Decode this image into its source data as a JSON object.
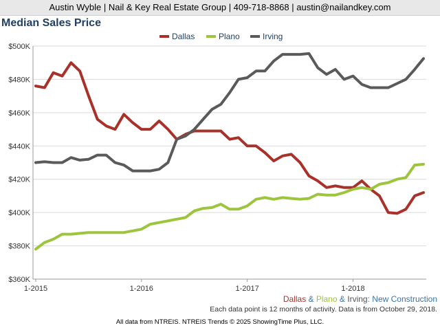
{
  "header": {
    "text": "Austin Wyble | Nail & Key Real Estate Group | 409-718-8868 | austin@nailandkey.com"
  },
  "chart_data": {
    "type": "line",
    "title": "Median Sales Price",
    "x_tick_labels": [
      "1-2015",
      "1-2016",
      "1-2017",
      "1-2018"
    ],
    "y_tick_labels": [
      "$360K",
      "$380K",
      "$400K",
      "$420K",
      "$440K",
      "$460K",
      "$480K",
      "$500K"
    ],
    "ylim": [
      360000,
      500000
    ],
    "grid": true,
    "legend_position": "top",
    "x": [
      "2015-01",
      "2015-02",
      "2015-03",
      "2015-04",
      "2015-05",
      "2015-06",
      "2015-07",
      "2015-08",
      "2015-09",
      "2015-10",
      "2015-11",
      "2015-12",
      "2016-01",
      "2016-02",
      "2016-03",
      "2016-04",
      "2016-05",
      "2016-06",
      "2016-07",
      "2016-08",
      "2016-09",
      "2016-10",
      "2016-11",
      "2016-12",
      "2017-01",
      "2017-02",
      "2017-03",
      "2017-04",
      "2017-05",
      "2017-06",
      "2017-07",
      "2017-08",
      "2017-09",
      "2017-10",
      "2017-11",
      "2017-12",
      "2018-01",
      "2018-02",
      "2018-03",
      "2018-04",
      "2018-05",
      "2018-06",
      "2018-07",
      "2018-08",
      "2018-09"
    ],
    "series": [
      {
        "name": "Dallas",
        "color": "#a8322a",
        "values": [
          476000,
          475000,
          484000,
          482000,
          490000,
          485000,
          470000,
          456000,
          452000,
          450000,
          459000,
          454000,
          450000,
          450000,
          455000,
          450000,
          444000,
          447000,
          449000,
          449000,
          449000,
          449000,
          444000,
          445000,
          440000,
          440000,
          436000,
          431000,
          434000,
          435000,
          430000,
          422000,
          419000,
          415000,
          416000,
          415000,
          415000,
          419000,
          414000,
          410000,
          400000,
          399500,
          402000,
          410000,
          412000
        ]
      },
      {
        "name": "Plano",
        "color": "#9dc43d",
        "values": [
          378000,
          382000,
          384000,
          387000,
          387000,
          387500,
          388000,
          388000,
          388000,
          388000,
          388000,
          389000,
          390000,
          393000,
          394000,
          395000,
          396000,
          397000,
          401000,
          402500,
          403000,
          405000,
          402000,
          402000,
          404000,
          408000,
          409000,
          408000,
          409000,
          408500,
          408000,
          408500,
          411000,
          410500,
          410500,
          412000,
          414000,
          415000,
          414000,
          417000,
          418000,
          420000,
          421000,
          428500,
          429000
        ]
      },
      {
        "name": "Irving",
        "color": "#5a5a5a",
        "values": [
          430000,
          430500,
          430000,
          430000,
          433000,
          431500,
          432000,
          434500,
          434500,
          430000,
          428500,
          425000,
          425000,
          425000,
          426000,
          430000,
          444000,
          446000,
          450000,
          456000,
          462000,
          465000,
          472000,
          480000,
          481000,
          485000,
          485000,
          491000,
          495000,
          495000,
          495000,
          495500,
          487000,
          483000,
          486000,
          480000,
          482000,
          477000,
          475000,
          475000,
          475000,
          477500,
          480000,
          486000,
          492500
        ]
      }
    ]
  },
  "footer": {
    "construction_label": {
      "dallas": "Dallas",
      "amp1": " & ",
      "plano": "Plano",
      "amp2": " & ",
      "irving": "Irving",
      "colon": ": ",
      "suffix": "New Construction"
    },
    "note": "Each data point is 12 months of activity. Data is from October 29, 2018.",
    "source": "All data from NTREIS. NTREIS Trends © 2025 ShowingTime Plus, LLC."
  },
  "colors": {
    "title": "#1f3f66",
    "new_construction": "#3b73a8",
    "irving_text": "#555555"
  }
}
